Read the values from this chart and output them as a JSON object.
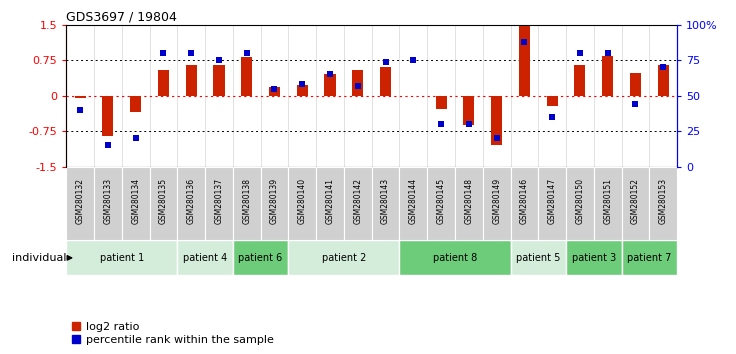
{
  "title": "GDS3697 / 19804",
  "samples": [
    "GSM280132",
    "GSM280133",
    "GSM280134",
    "GSM280135",
    "GSM280136",
    "GSM280137",
    "GSM280138",
    "GSM280139",
    "GSM280140",
    "GSM280141",
    "GSM280142",
    "GSM280143",
    "GSM280144",
    "GSM280145",
    "GSM280148",
    "GSM280149",
    "GSM280146",
    "GSM280147",
    "GSM280150",
    "GSM280151",
    "GSM280152",
    "GSM280153"
  ],
  "log2_ratio": [
    -0.05,
    -0.85,
    -0.35,
    0.55,
    0.65,
    0.65,
    0.82,
    0.18,
    0.22,
    0.45,
    0.55,
    0.6,
    0.0,
    -0.28,
    -0.62,
    -1.05,
    1.47,
    -0.22,
    0.65,
    0.85,
    0.48,
    0.65
  ],
  "percentile": [
    40,
    15,
    20,
    80,
    80,
    75,
    80,
    55,
    58,
    65,
    57,
    74,
    75,
    30,
    30,
    20,
    88,
    35,
    80,
    80,
    44,
    70
  ],
  "patients": [
    {
      "name": "patient 1",
      "samples": [
        "GSM280132",
        "GSM280133",
        "GSM280134",
        "GSM280135"
      ],
      "color": "#d4edda"
    },
    {
      "name": "patient 4",
      "samples": [
        "GSM280136",
        "GSM280137"
      ],
      "color": "#d4edda"
    },
    {
      "name": "patient 6",
      "samples": [
        "GSM280138",
        "GSM280139"
      ],
      "color": "#6dcc7a"
    },
    {
      "name": "patient 2",
      "samples": [
        "GSM280140",
        "GSM280141",
        "GSM280142",
        "GSM280143"
      ],
      "color": "#d4edda"
    },
    {
      "name": "patient 8",
      "samples": [
        "GSM280144",
        "GSM280145",
        "GSM280148",
        "GSM280149"
      ],
      "color": "#6dcc7a"
    },
    {
      "name": "patient 5",
      "samples": [
        "GSM280146",
        "GSM280147"
      ],
      "color": "#d4edda"
    },
    {
      "name": "patient 3",
      "samples": [
        "GSM280150",
        "GSM280151"
      ],
      "color": "#6dcc7a"
    },
    {
      "name": "patient 7",
      "samples": [
        "GSM280152",
        "GSM280153"
      ],
      "color": "#6dcc7a"
    }
  ],
  "bar_color": "#cc2200",
  "dot_color": "#0000cc",
  "plot_bg": "#ffffff",
  "label_log2": "log2 ratio",
  "label_pct": "percentile rank within the sample",
  "individual_label": "individual"
}
